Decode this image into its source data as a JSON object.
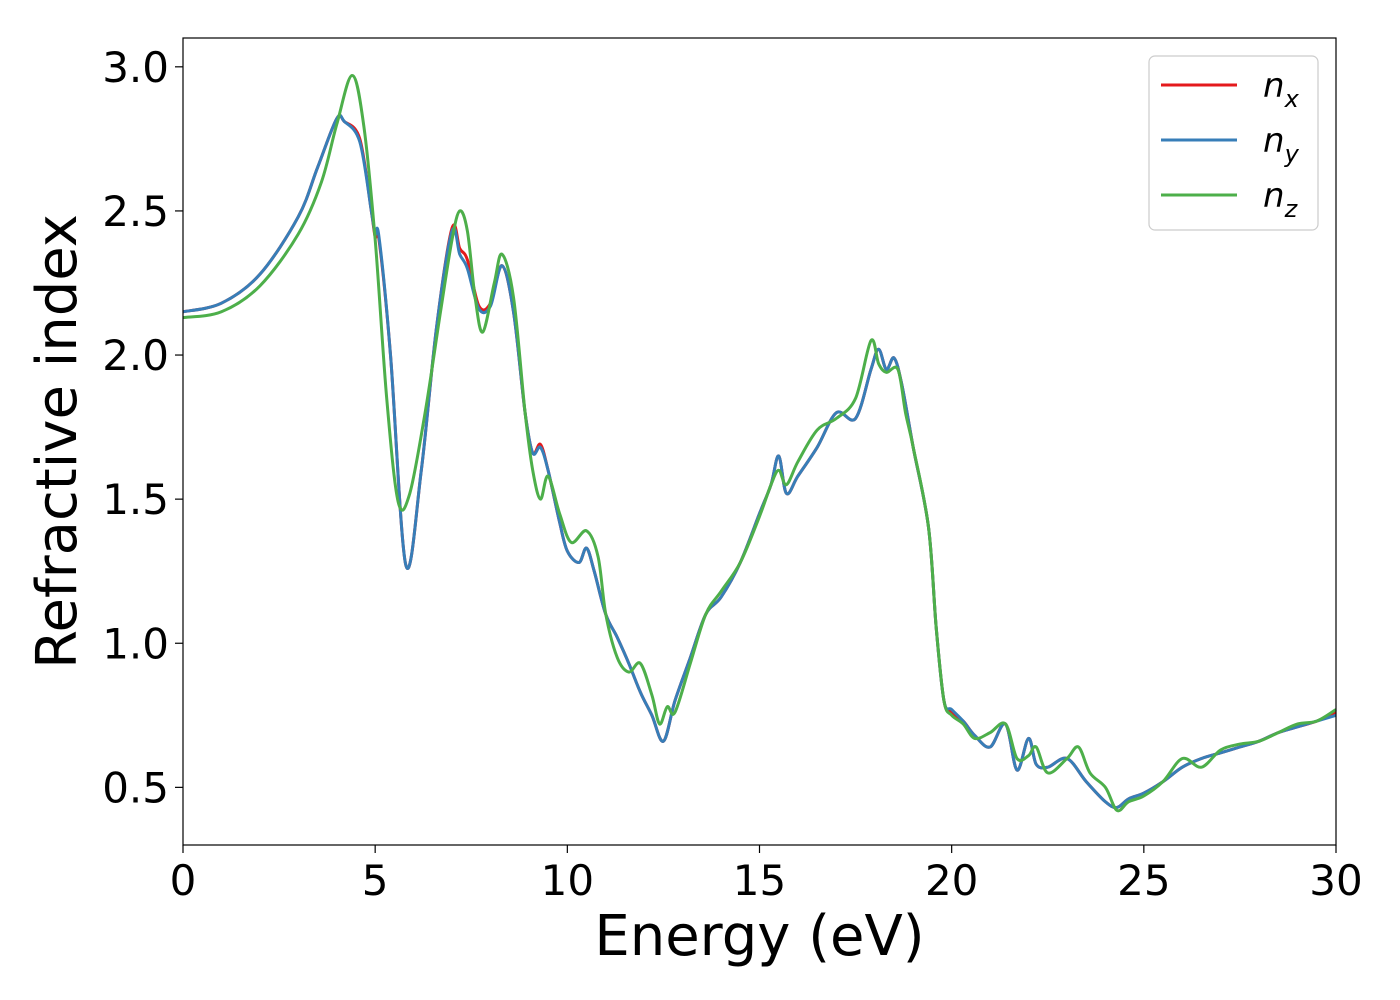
{
  "chart_data": {
    "type": "line",
    "xlabel": "Energy (eV)",
    "ylabel": "Refractive index",
    "xlim": [
      0,
      30
    ],
    "ylim": [
      0.3,
      3.1
    ],
    "xticks": [
      0,
      5,
      10,
      15,
      20,
      25,
      30
    ],
    "xtick_labels": [
      "0",
      "5",
      "10",
      "15",
      "20",
      "25",
      "30"
    ],
    "yticks": [
      0.5,
      1.0,
      1.5,
      2.0,
      2.5,
      3.0
    ],
    "ytick_labels": [
      "0.5",
      "1.0",
      "1.5",
      "2.0",
      "2.5",
      "3.0"
    ],
    "grid": false,
    "legend_position": "top-right",
    "series": [
      {
        "name": "n_x",
        "label_base": "n",
        "label_sub": "x",
        "color": "#e41a1c",
        "x": [
          0,
          1,
          2,
          3,
          3.5,
          4.0,
          4.2,
          4.6,
          4.9,
          5.0,
          5.1,
          5.4,
          5.8,
          6.2,
          6.6,
          7.0,
          7.2,
          7.4,
          7.7,
          8.0,
          8.3,
          8.6,
          8.9,
          9.1,
          9.3,
          9.5,
          9.8,
          10.0,
          10.3,
          10.5,
          10.7,
          11.0,
          11.3,
          11.6,
          11.9,
          12.2,
          12.5,
          12.8,
          13.2,
          13.6,
          14.0,
          14.5,
          15.0,
          15.3,
          15.5,
          15.7,
          16.0,
          16.5,
          17.0,
          17.5,
          17.9,
          18.1,
          18.3,
          18.5,
          18.7,
          19.0,
          19.4,
          19.6,
          19.8,
          20.0,
          20.3,
          20.6,
          21.0,
          21.4,
          21.7,
          22.0,
          22.2,
          22.5,
          23.0,
          23.5,
          24.0,
          24.3,
          24.6,
          25.0,
          25.5,
          26.0,
          26.5,
          27.0,
          27.5,
          28.0,
          28.5,
          29.0,
          29.5,
          30.0
        ],
        "y": [
          2.15,
          2.18,
          2.28,
          2.48,
          2.65,
          2.82,
          2.81,
          2.75,
          2.5,
          2.41,
          2.4,
          2.0,
          1.27,
          1.6,
          2.1,
          2.44,
          2.37,
          2.33,
          2.17,
          2.18,
          2.31,
          2.15,
          1.8,
          1.66,
          1.69,
          1.6,
          1.42,
          1.32,
          1.28,
          1.33,
          1.25,
          1.1,
          1.02,
          0.93,
          0.83,
          0.75,
          0.66,
          0.8,
          0.95,
          1.1,
          1.16,
          1.28,
          1.45,
          1.55,
          1.65,
          1.52,
          1.58,
          1.68,
          1.8,
          1.78,
          1.95,
          2.02,
          1.95,
          1.99,
          1.9,
          1.68,
          1.4,
          1.05,
          0.8,
          0.76,
          0.73,
          0.68,
          0.64,
          0.72,
          0.56,
          0.67,
          0.58,
          0.57,
          0.6,
          0.52,
          0.45,
          0.43,
          0.46,
          0.48,
          0.52,
          0.57,
          0.6,
          0.62,
          0.64,
          0.66,
          0.69,
          0.71,
          0.73,
          0.76
        ]
      },
      {
        "name": "n_y",
        "label_base": "n",
        "label_sub": "y",
        "color": "#377eb8",
        "x": [
          0,
          1,
          2,
          3,
          3.5,
          4.0,
          4.2,
          4.6,
          4.9,
          5.0,
          5.1,
          5.4,
          5.8,
          6.2,
          6.6,
          7.0,
          7.2,
          7.4,
          7.7,
          8.0,
          8.3,
          8.6,
          8.9,
          9.1,
          9.3,
          9.5,
          9.8,
          10.0,
          10.3,
          10.5,
          10.7,
          11.0,
          11.3,
          11.6,
          11.9,
          12.2,
          12.5,
          12.8,
          13.2,
          13.6,
          14.0,
          14.5,
          15.0,
          15.3,
          15.5,
          15.7,
          16.0,
          16.5,
          17.0,
          17.5,
          17.9,
          18.1,
          18.3,
          18.5,
          18.7,
          19.0,
          19.4,
          19.6,
          19.8,
          20.0,
          20.3,
          20.6,
          21.0,
          21.4,
          21.7,
          22.0,
          22.2,
          22.5,
          23.0,
          23.5,
          24.0,
          24.3,
          24.6,
          25.0,
          25.5,
          26.0,
          26.5,
          27.0,
          27.5,
          28.0,
          28.5,
          29.0,
          29.5,
          30.0
        ],
        "y": [
          2.15,
          2.18,
          2.28,
          2.48,
          2.65,
          2.82,
          2.81,
          2.74,
          2.5,
          2.42,
          2.41,
          2.0,
          1.27,
          1.6,
          2.1,
          2.43,
          2.35,
          2.3,
          2.16,
          2.17,
          2.31,
          2.15,
          1.8,
          1.66,
          1.68,
          1.6,
          1.42,
          1.32,
          1.28,
          1.33,
          1.25,
          1.1,
          1.02,
          0.93,
          0.83,
          0.75,
          0.66,
          0.8,
          0.95,
          1.1,
          1.16,
          1.28,
          1.45,
          1.55,
          1.65,
          1.52,
          1.58,
          1.68,
          1.8,
          1.78,
          1.95,
          2.02,
          1.95,
          1.99,
          1.9,
          1.68,
          1.4,
          1.05,
          0.8,
          0.77,
          0.73,
          0.68,
          0.64,
          0.72,
          0.56,
          0.67,
          0.58,
          0.57,
          0.6,
          0.52,
          0.45,
          0.43,
          0.46,
          0.48,
          0.52,
          0.57,
          0.6,
          0.62,
          0.64,
          0.66,
          0.69,
          0.71,
          0.73,
          0.75
        ]
      },
      {
        "name": "n_z",
        "label_base": "n",
        "label_sub": "z",
        "color": "#4daf4a",
        "x": [
          0,
          1,
          2,
          3,
          3.6,
          4.0,
          4.4,
          4.7,
          5.0,
          5.3,
          5.6,
          5.9,
          6.3,
          6.7,
          7.0,
          7.2,
          7.4,
          7.6,
          7.8,
          8.1,
          8.3,
          8.6,
          8.9,
          9.1,
          9.3,
          9.5,
          9.8,
          10.1,
          10.5,
          10.8,
          11.0,
          11.3,
          11.6,
          11.9,
          12.2,
          12.4,
          12.6,
          12.8,
          13.2,
          13.6,
          14.0,
          14.5,
          15.0,
          15.3,
          15.5,
          15.7,
          16.0,
          16.5,
          17.0,
          17.5,
          17.9,
          18.1,
          18.3,
          18.6,
          18.8,
          19.0,
          19.4,
          19.6,
          19.8,
          20.0,
          20.3,
          20.6,
          21.0,
          21.4,
          21.7,
          22.0,
          22.2,
          22.5,
          23.0,
          23.3,
          23.6,
          24.0,
          24.3,
          24.6,
          25.0,
          25.5,
          26.0,
          26.5,
          27.0,
          27.5,
          28.0,
          28.5,
          29.0,
          29.5,
          30.0
        ],
        "y": [
          2.13,
          2.15,
          2.24,
          2.42,
          2.6,
          2.8,
          2.97,
          2.8,
          2.4,
          1.85,
          1.49,
          1.52,
          1.8,
          2.15,
          2.4,
          2.5,
          2.43,
          2.2,
          2.08,
          2.25,
          2.35,
          2.2,
          1.8,
          1.6,
          1.5,
          1.58,
          1.45,
          1.35,
          1.39,
          1.3,
          1.1,
          0.95,
          0.9,
          0.93,
          0.82,
          0.72,
          0.78,
          0.76,
          0.93,
          1.1,
          1.18,
          1.28,
          1.44,
          1.55,
          1.6,
          1.55,
          1.63,
          1.74,
          1.78,
          1.85,
          2.05,
          1.97,
          1.94,
          1.95,
          1.8,
          1.68,
          1.4,
          1.05,
          0.8,
          0.75,
          0.72,
          0.67,
          0.69,
          0.72,
          0.6,
          0.61,
          0.64,
          0.55,
          0.6,
          0.64,
          0.55,
          0.5,
          0.42,
          0.45,
          0.47,
          0.52,
          0.6,
          0.57,
          0.63,
          0.65,
          0.66,
          0.69,
          0.72,
          0.73,
          0.77
        ]
      }
    ]
  }
}
